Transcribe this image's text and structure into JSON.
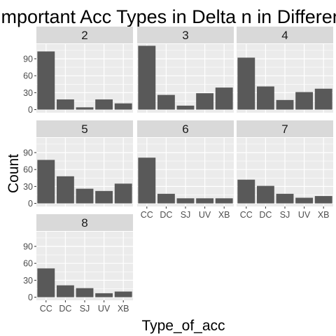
{
  "chart_data": {
    "type": "bar",
    "title": "Important Acc Types in Delta n in Different",
    "xlabel": "Type_of_acc",
    "ylabel": "Count",
    "categories": [
      "CC",
      "DC",
      "SJ",
      "UV",
      "XB"
    ],
    "yticks": [
      0,
      30,
      60,
      90
    ],
    "ylim": [
      -5.5,
      116
    ],
    "grid": true,
    "facet_ncol": 3,
    "colors": {
      "bar": "#595959",
      "panel_bg": "#ebebeb",
      "strip_bg": "#d9d9d9",
      "grid": "#ffffff"
    },
    "panels": [
      {
        "label": "2",
        "values": [
          103,
          18,
          4,
          18,
          11
        ]
      },
      {
        "label": "3",
        "values": [
          113,
          26,
          7,
          29,
          39
        ]
      },
      {
        "label": "4",
        "values": [
          92,
          41,
          17,
          31,
          37
        ]
      },
      {
        "label": "5",
        "values": [
          77,
          48,
          26,
          22,
          35
        ]
      },
      {
        "label": "6",
        "values": [
          81,
          17,
          9,
          9,
          9
        ]
      },
      {
        "label": "7",
        "values": [
          42,
          31,
          17,
          10,
          13
        ]
      },
      {
        "label": "8",
        "values": [
          51,
          21,
          16,
          7,
          10
        ]
      }
    ]
  }
}
